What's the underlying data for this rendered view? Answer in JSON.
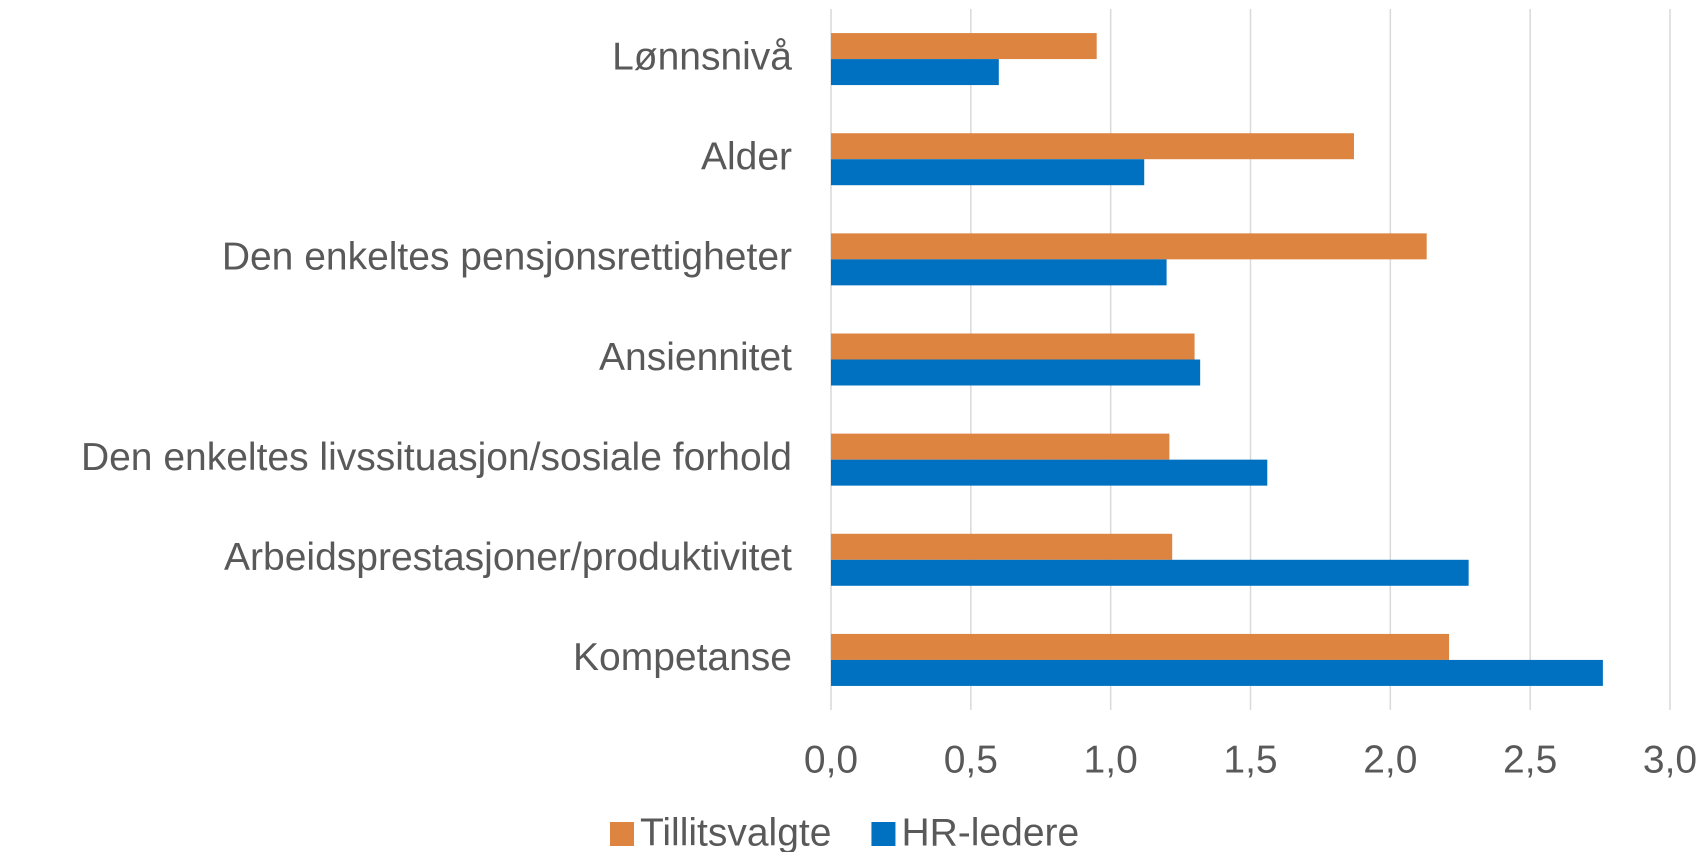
{
  "chart_data": {
    "type": "bar",
    "orientation": "horizontal",
    "categories": [
      "Lønnsnivå",
      "Alder",
      "Den enkeltes pensjonsrettigheter",
      "Ansiennitet",
      "Den enkeltes livssituasjon/sosiale forhold",
      "Arbeidsprestasjoner/produktivitet",
      "Kompetanse"
    ],
    "series": [
      {
        "name": "Tillitsvalgte",
        "color": "#dd8440",
        "values": [
          0.95,
          1.87,
          2.13,
          1.3,
          1.21,
          1.22,
          2.21
        ]
      },
      {
        "name": "HR-ledere",
        "color": "#0070c0",
        "values": [
          0.6,
          1.12,
          1.2,
          1.32,
          1.56,
          2.28,
          2.76
        ]
      }
    ],
    "xlim": [
      0,
      3
    ],
    "xticks": [
      {
        "value": 0,
        "label": "0,0"
      },
      {
        "value": 0.5,
        "label": "0,5"
      },
      {
        "value": 1,
        "label": "1,0"
      },
      {
        "value": 1.5,
        "label": "1,5"
      },
      {
        "value": 2,
        "label": "2,0"
      },
      {
        "value": 2.5,
        "label": "2,5"
      },
      {
        "value": 3,
        "label": "3,0"
      }
    ],
    "grid": true,
    "legend": "bottom"
  }
}
